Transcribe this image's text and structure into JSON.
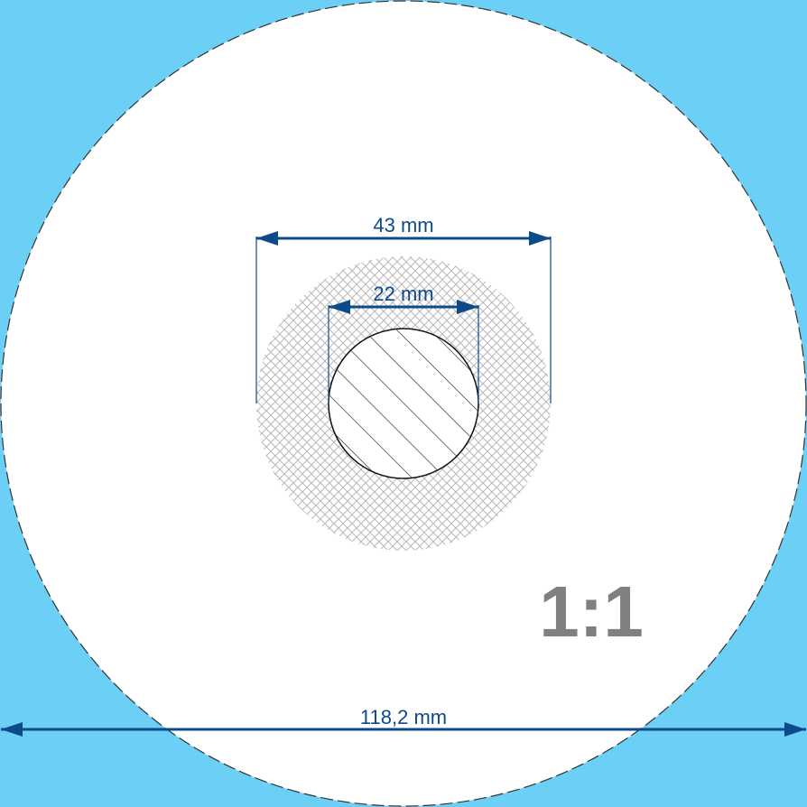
{
  "dimensions": {
    "outer_diameter": "43 mm",
    "inner_diameter": "22 mm",
    "disc_diameter": "118,2 mm"
  },
  "scale": "1:1",
  "colors": {
    "background": "#6ccff6",
    "disc": "#ffffff",
    "dimension_line": "#0d4a8a",
    "scale_text": "#808080",
    "crosshatch": "#b8b8b8"
  }
}
